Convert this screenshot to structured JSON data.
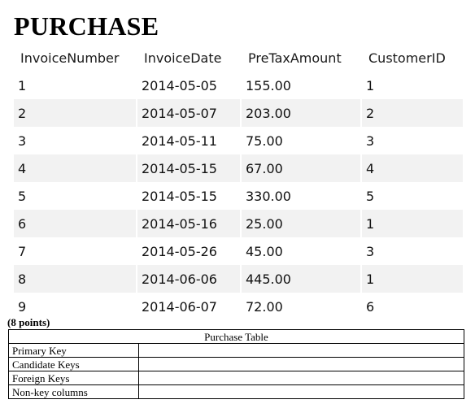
{
  "title": "PURCHASE",
  "grid": {
    "columns": [
      "InvoiceNumber",
      "InvoiceDate",
      "PreTaxAmount",
      "CustomerID"
    ],
    "rows": [
      [
        "1",
        "2014-05-05",
        "155.00",
        "1"
      ],
      [
        "2",
        "2014-05-07",
        "203.00",
        "2"
      ],
      [
        "3",
        "2014-05-11",
        "75.00",
        "3"
      ],
      [
        "4",
        "2014-05-15",
        "67.00",
        "4"
      ],
      [
        "5",
        "2014-05-15",
        "330.00",
        "5"
      ],
      [
        "6",
        "2014-05-16",
        "25.00",
        "1"
      ],
      [
        "7",
        "2014-05-26",
        "45.00",
        "3"
      ],
      [
        "8",
        "2014-06-06",
        "445.00",
        "1"
      ],
      [
        "9",
        "2014-06-07",
        "72.00",
        "6"
      ]
    ]
  },
  "points": "(8 points)",
  "question_table": {
    "caption": "Purchase Table",
    "rows": [
      {
        "label": "Primary Key",
        "value": ""
      },
      {
        "label": "Candidate Keys",
        "value": ""
      },
      {
        "label": "Foreign Keys",
        "value": ""
      },
      {
        "label": "Non-key columns",
        "value": ""
      }
    ]
  }
}
